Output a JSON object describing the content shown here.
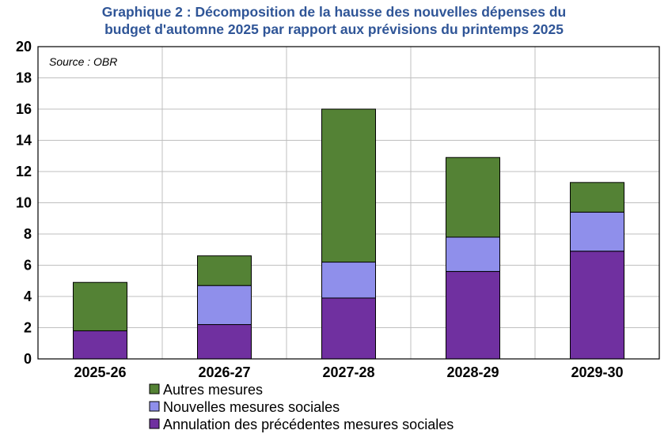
{
  "chart_data": {
    "type": "bar",
    "stacked": true,
    "title_line1": "Graphique 2 : Décomposition de la hausse des nouvelles dépenses du",
    "title_line2": "budget d'automne 2025 par rapport aux prévisions du printemps 2025",
    "annotation": "Source : OBR",
    "categories": [
      "2025-26",
      "2026-27",
      "2027-28",
      "2028-29",
      "2029-30"
    ],
    "ylim": [
      0,
      20
    ],
    "yticks": [
      0,
      2,
      4,
      6,
      8,
      10,
      12,
      14,
      16,
      18,
      20
    ],
    "grid": true,
    "legend_position": "bottom-left",
    "series": [
      {
        "name": "Annulation des précédentes mesures sociales",
        "color": "#7030A0",
        "values": [
          1.8,
          2.2,
          3.9,
          5.6,
          6.9
        ]
      },
      {
        "name": "Nouvelles mesures sociales",
        "color": "#8F8FEB",
        "values": [
          0,
          2.5,
          2.3,
          2.2,
          2.5
        ]
      },
      {
        "name": "Autres mesures",
        "color": "#548235",
        "values": [
          3.1,
          1.9,
          9.8,
          5.1,
          1.9
        ]
      }
    ]
  }
}
